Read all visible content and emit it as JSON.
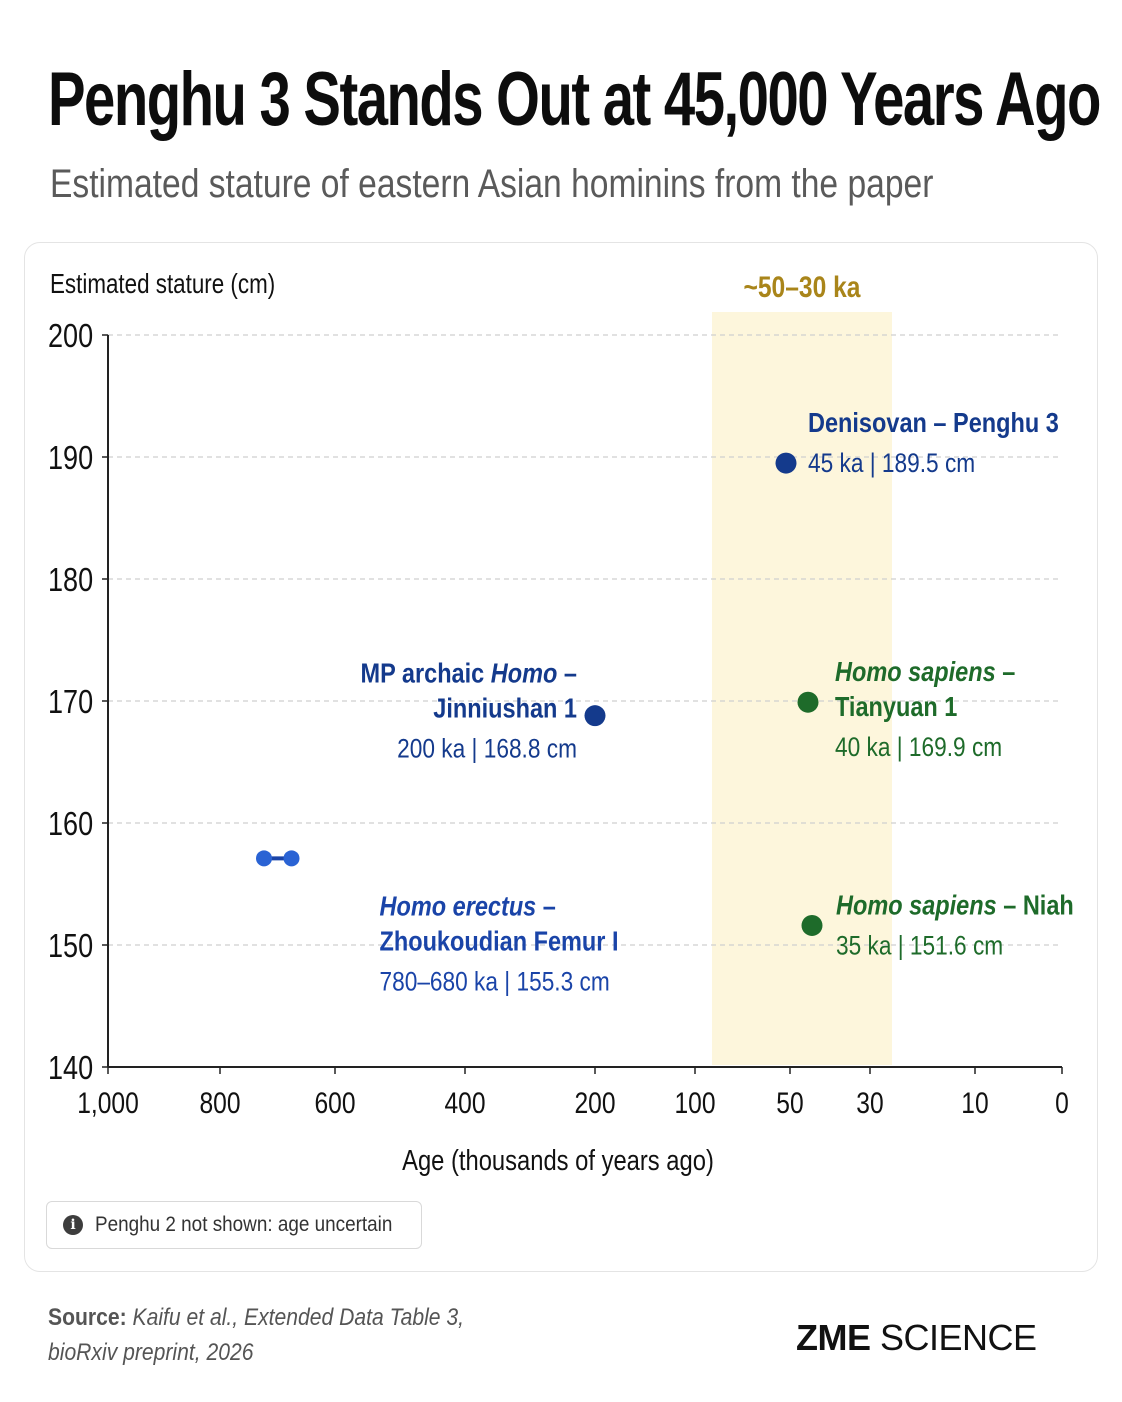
{
  "header": {
    "title": "Penghu 3 Stands Out at 45,000 Years Ago",
    "subtitle": "Estimated stature of eastern Asian hominins from the paper"
  },
  "chart_data": {
    "type": "scatter",
    "ylabel": "Estimated stature (cm)",
    "xlabel": "Age (thousands of years ago)",
    "ylim": [
      140,
      200
    ],
    "yticks": [
      140,
      150,
      160,
      170,
      180,
      190,
      200
    ],
    "xticks": [
      1000,
      800,
      600,
      400,
      200,
      100,
      50,
      30,
      10,
      0
    ],
    "xtick_labels": [
      "1,000",
      "800",
      "600",
      "400",
      "200",
      "100",
      "50",
      "30",
      "10",
      "0"
    ],
    "x_axis_direction": "reversed (older to the left)",
    "grid": "horizontal dashed",
    "highlight_band": {
      "label": "~50–30 ka",
      "from": 50,
      "to": 30,
      "color": "#fdf6dc",
      "label_color": "#a9851a"
    },
    "points": [
      {
        "group": "Homo erectus",
        "label_lines": [
          "Homo erectus –",
          "Zhoukoudian Femur I"
        ],
        "detail": "780–680 ka | 155.3 cm",
        "age_range_ka": [
          780,
          680
        ],
        "stature_cm": 155.3,
        "color": "#1a44a8",
        "label_align": "left"
      },
      {
        "group": "MP archaic Homo",
        "label_lines": [
          "MP archaic Homo –",
          "Jinniushan 1"
        ],
        "detail": "200 ka | 168.8 cm",
        "age_ka": 200,
        "stature_cm": 168.8,
        "color": "#143a8c",
        "label_align": "right"
      },
      {
        "group": "Denisovan",
        "label_lines": [
          "Denisovan – Penghu 3"
        ],
        "detail": "45 ka | 189.5 cm",
        "age_ka": 45,
        "stature_cm": 189.5,
        "color": "#143a8c",
        "label_align": "left"
      },
      {
        "group": "Homo sapiens",
        "label_lines": [
          "Homo sapiens –",
          "Tianyuan 1"
        ],
        "detail": "40 ka | 169.9 cm",
        "age_ka": 40,
        "stature_cm": 169.9,
        "color": "#1e6b2a",
        "label_align": "left"
      },
      {
        "group": "Homo sapiens",
        "label_lines": [
          "Homo sapiens – Niah"
        ],
        "detail": "35 ka | 151.6 cm",
        "age_ka": 35,
        "stature_cm": 151.6,
        "color": "#1e6b2a",
        "label_align": "left"
      }
    ]
  },
  "note": {
    "icon": "info-icon",
    "text": "Penghu 2 not shown: age uncertain"
  },
  "source": {
    "label": "Source:",
    "line1": "Kaifu et al., Extended Data Table 3,",
    "line2": "bioRxiv preprint, 2026"
  },
  "brand": {
    "part1": "ZME",
    "part2": "SCIENCE"
  }
}
